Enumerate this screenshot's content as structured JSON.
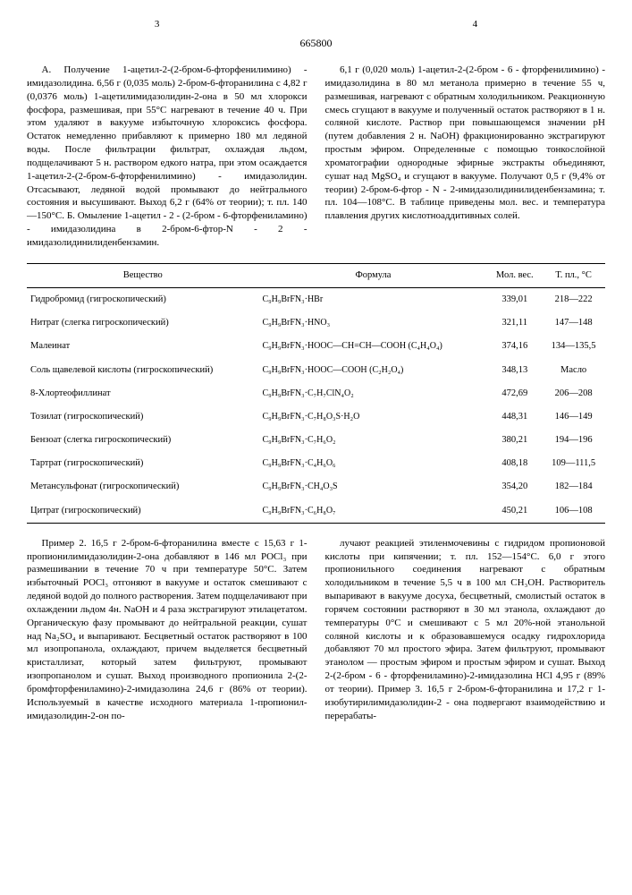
{
  "doc_number": "665800",
  "page_left": "3",
  "page_right": "4",
  "col_left": "А. Получение 1-ацетил-2-(2-бром-6-фторфенилимино) - имидазолидина. 6,56 г (0,035 моль) 2-бром-6-фторанилина с 4,82 г (0,0376 моль) 1-ацетилимидазолидин-2-она в 50 мл хлорокси фосфора, размешивая, при 55°С нагревают в течение 40 ч. При этом удаляют в вакууме избыточную хлороксись фосфора. Остаток немедленно прибавляют к примерно 180 мл ледяной воды. После фильтрации фильтрат, охлаждая льдом, подщелачивают 5 н. раствором едкого натра, при этом осаждается 1-ацетил-2-(2-бром-6-фторфенилимино) - имидазолидин. Отсасывают, ледяной водой промывают до нейтрального состояния и высушивают. Выход 6,2 г (64% от теории); т. пл. 140—150°С. Б. Омыление 1-ацетил - 2 - (2-бром - 6-фторфениламино) - имидазолидина в 2-бром-6-фтор-N - 2 - имидазолидинилиденбензамин.",
  "col_right": "6,1 г (0,020 моль) 1-ацетил-2-(2-бром - 6 - фторфенилимино) - имидазолидина в 80 мл метанола примерно в течение 55 ч, размешивая, нагревают с обратным холодильником. Реакционную смесь сгущают в вакууме и полученный остаток растворяют в 1 н. соляной кислоте. Раствор при повышающемся значении pH (путем добавления 2 н. NaOH) фракционированно экстрагируют простым эфиром. Определенные с помощью тонкослойной хроматографии однородные эфирные экстракты объединяют, сушат над MgSO₄ и сгущают в вакууме. Получают 0,5 г (9,4% от теории) 2-бром-6-фтор - N - 2-имидазолидинилиденбензамина; т. пл. 104—108°С. В таблице приведены мол. вес. и температура плавления других кислотноаддитивных солей.",
  "table": {
    "headers": [
      "Вещество",
      "Формула",
      "Мол. вес.",
      "Т. пл., °С"
    ],
    "rows": [
      [
        "Гидробромид (гигроскопический)",
        "C₉H₉BrFN₃·HBr",
        "339,01",
        "218—222"
      ],
      [
        "Нитрат (слегка гигроскопический)",
        "C₉H₉BrFN₃·HNO₃",
        "321,11",
        "147—148"
      ],
      [
        "Малеинат",
        "C₉H₉BrFN₃·HOOC—CH=CH—COOH (C₄H₄O₄)",
        "374,16",
        "134—135,5"
      ],
      [
        "Соль щавелевой кислоты (гигроскопический)",
        "C₉H₉BrFN₃·HOOC—COOH (C₂H₂O₄)",
        "348,13",
        "Масло"
      ],
      [
        "8-Хлортеофиллинат",
        "C₉H₉BrFN₃·C₇H₇ClN₄O₂",
        "472,69",
        "206—208"
      ],
      [
        "Тозилат (гигроскопический)",
        "C₉H₉BrFN₃·C₇H₈O₃S·H₂O",
        "448,31",
        "146—149"
      ],
      [
        "Бензоат (слегка гигроскопический)",
        "C₉H₉BrFN₃·C₇H₆O₂",
        "380,21",
        "194—196"
      ],
      [
        "Тартрат (гигроскопический)",
        "C₉H₉BrFN₃·C₄H₆O₆",
        "408,18",
        "109—111,5"
      ],
      [
        "Метансульфонат (гигроскопический)",
        "C₉H₉BrFN₃·CH₄O₃S",
        "354,20",
        "182—184"
      ],
      [
        "Цитрат (гигроскопический)",
        "C₉H₉BrFN₃·C₆H₈O₇",
        "450,21",
        "106—108"
      ]
    ]
  },
  "col2_left": "Пример 2. 16,5 г 2-бром-6-фторанилина вместе с 15,63 г 1-пропионилимидазолидин-2-она добавляют в 146 мл POCl₃ при размешивании в течение 70 ч при температуре 50°С. Затем избыточный POCl₃ отгоняют в вакууме и остаток смешивают с ледяной водой до полного растворения. Затем подщелачивают при охлаждении льдом 4н. NaOH и 4 раза экстрагируют этилацетатом. Органическую фазу промывают до нейтральной реакции, сушат над Na₂SO₄ и выпаривают. Бесцветный остаток растворяют в 100 мл изопропанола, охлаждают, причем выделяется бесцветный кристаллизат, который затем фильтруют, промывают изопропанолом и сушат. Выход производного пропионила 2-(2-бромфторфениламино)-2-имидазолина 24,6 г (86% от теории). Используемый в качестве исходного материала 1-пропионил-имидазолидин-2-он по-",
  "col2_right": "лучают реакцией этиленмочевины с гидридом пропионовой кислоты при кипячении; т. пл. 152—154°С. 6,0 г этого пропионильного соединения нагревают с обратным холодильником в течение 5,5 ч в 100 мл CH₃OH. Растворитель выпаривают в вакууме досуха, бесцветный, смолистый остаток в горячем состоянии растворяют в 30 мл этанола, охлаждают до температуры 0°С и смешивают с 5 мл 20%-ной этанольной соляной кислоты и к образовавшемуся осадку гидрохлорида добавляют 70 мл простого эфира. Затем фильтруют, промывают этанолом — простым эфиром и простым эфиром и сушат. Выход 2-(2-бром - 6 - фторфениламино)-2-имидазолина HCl 4,95 г (89% от теории). Пример 3. 16,5 г 2-бром-6-фторанилина и 17,2 г 1-изобутирилимидазолидин-2 - она подвергают взаимодействию и перерабаты-"
}
